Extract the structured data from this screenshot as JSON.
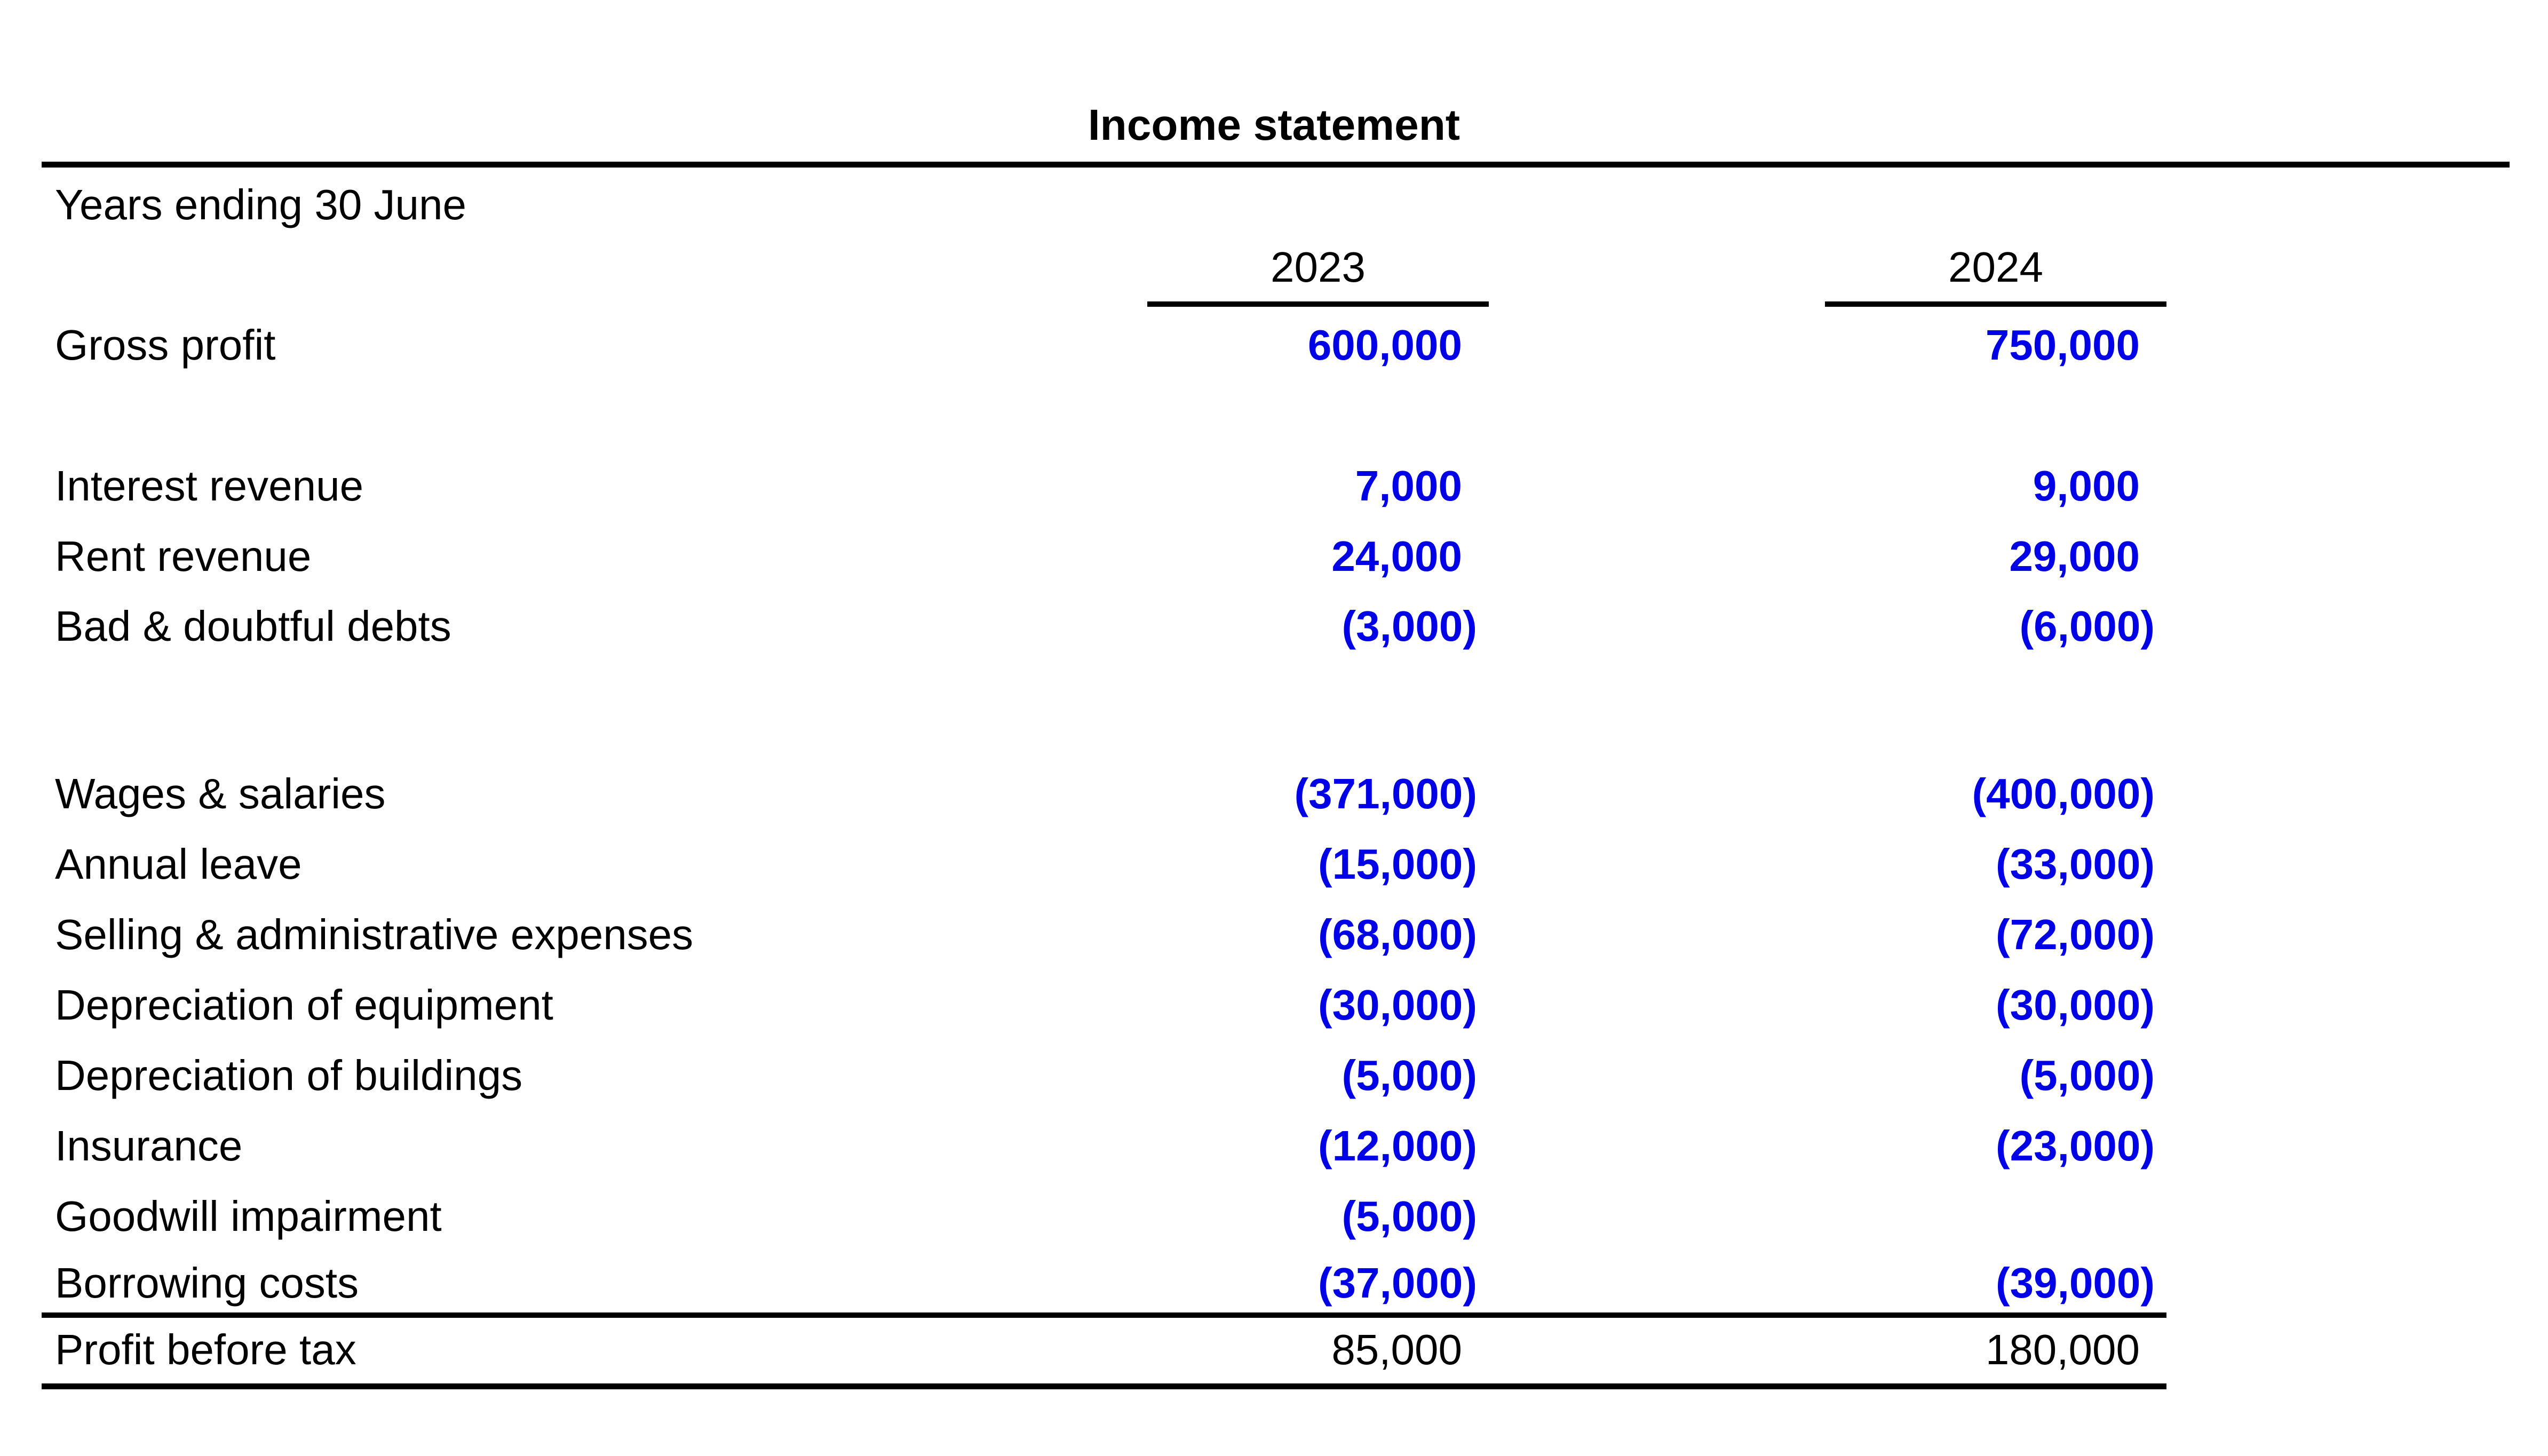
{
  "title": "Income statement",
  "period_label": "Years ending 30 June",
  "columns": [
    "2023",
    "2024"
  ],
  "colors": {
    "value_blue": "#0000e6",
    "text": "#000000"
  },
  "rows": [
    {
      "label": "Gross profit",
      "v2023": "600,000",
      "v2024": "750,000"
    },
    {
      "label": "Interest revenue",
      "v2023": "7,000",
      "v2024": "9,000"
    },
    {
      "label": "Rent revenue",
      "v2023": "24,000",
      "v2024": "29,000"
    },
    {
      "label": "Bad & doubtful debts",
      "v2023": "(3,000)",
      "v2024": "(6,000)"
    },
    {
      "label": "Wages & salaries",
      "v2023": "(371,000)",
      "v2024": "(400,000)"
    },
    {
      "label": "Annual leave",
      "v2023": "(15,000)",
      "v2024": "(33,000)"
    },
    {
      "label": "Selling & administrative expenses",
      "v2023": "(68,000)",
      "v2024": "(72,000)"
    },
    {
      "label": "Depreciation of equipment",
      "v2023": "(30,000)",
      "v2024": "(30,000)"
    },
    {
      "label": "Depreciation of buildings",
      "v2023": "(5,000)",
      "v2024": "(5,000)"
    },
    {
      "label": "Insurance",
      "v2023": "(12,000)",
      "v2024": "(23,000)"
    },
    {
      "label": "Goodwill impairment",
      "v2023": "(5,000)",
      "v2024": ""
    },
    {
      "label": "Borrowing costs",
      "v2023": "(37,000)",
      "v2024": "(39,000)"
    }
  ],
  "total": {
    "label": "Profit before tax",
    "v2023": "85,000",
    "v2024": "180,000"
  }
}
